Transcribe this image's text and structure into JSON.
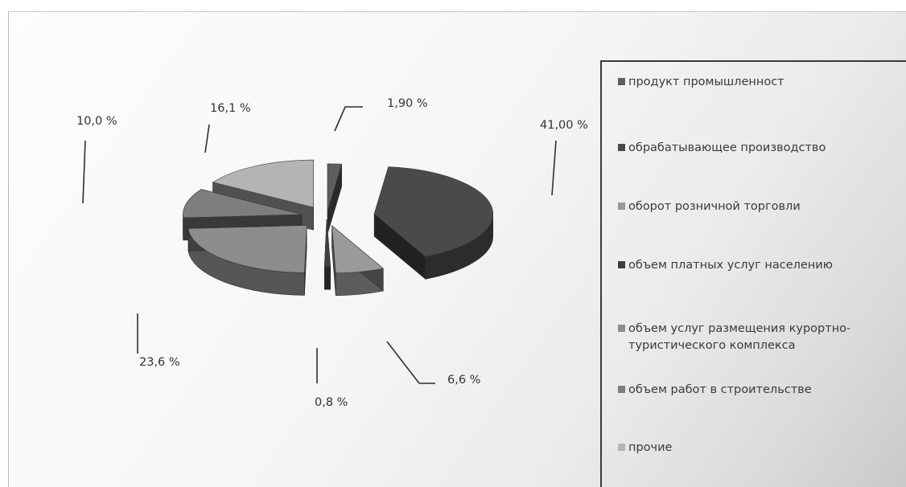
{
  "chart_data": {
    "type": "pie",
    "style": "3d-exploded",
    "slices": [
      {
        "label": "продукт промышленност",
        "value": 1.9,
        "value_text": "1,90 %",
        "color": "#5e5e5e"
      },
      {
        "label": "обрабатывающее производство",
        "value": 41.0,
        "value_text": "41,00 %",
        "color": "#4a4a4a"
      },
      {
        "label": "оборот розничной торговли",
        "value": 6.6,
        "value_text": "6,6 %",
        "color": "#9a9a9a"
      },
      {
        "label": "объем платных услуг населению",
        "value": 0.8,
        "value_text": "0,8 %",
        "color": "#3e3e3e"
      },
      {
        "label": "объем услуг размещения курортно-туристического комплекса",
        "value": 23.6,
        "value_text": "23,6 %",
        "color": "#8d8d8d"
      },
      {
        "label": "объем работ в строительстве",
        "value": 10.0,
        "value_text": "10,0 %",
        "color": "#7e7e7e"
      },
      {
        "label": "прочие",
        "value": 16.1,
        "value_text": "16,1 %",
        "color": "#b4b4b4"
      }
    ],
    "legend_position": "right"
  }
}
